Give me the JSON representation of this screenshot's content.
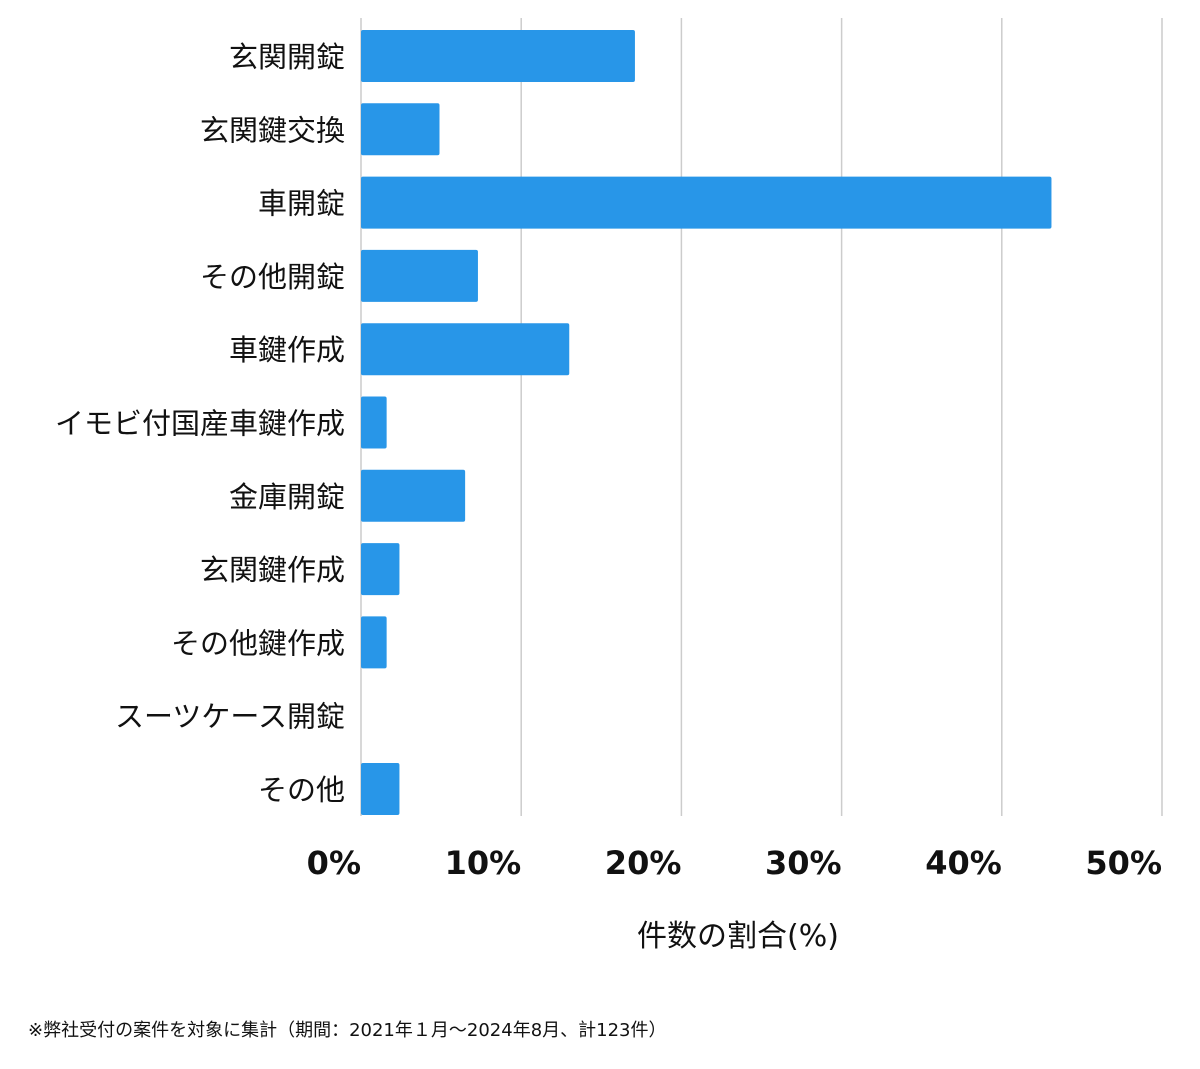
{
  "chart_data": {
    "type": "bar",
    "orientation": "horizontal",
    "categories": [
      "玄関開錠",
      "玄関鍵交換",
      "車開錠",
      "その他開錠",
      "車鍵作成",
      "イモビ付国産車鍵作成",
      "金庫開錠",
      "玄関鍵作成",
      "その他鍵作成",
      "スーツケース開錠",
      "その他"
    ],
    "values": [
      17.1,
      4.9,
      43.1,
      7.3,
      13.0,
      1.6,
      6.5,
      2.4,
      1.6,
      0.0,
      2.4
    ],
    "xlim": [
      0,
      50
    ],
    "xticks": [
      0,
      10,
      20,
      30,
      40,
      50
    ],
    "tick_suffix": "%",
    "xlabel": "件数の割合(%)",
    "bar_color": "#2896e8",
    "grid": "vertical",
    "grid_color": "#cccccc"
  },
  "footnote": "※弊社受付の案件を対象に集計（期間：2021年１月〜2024年8月、計123件）"
}
